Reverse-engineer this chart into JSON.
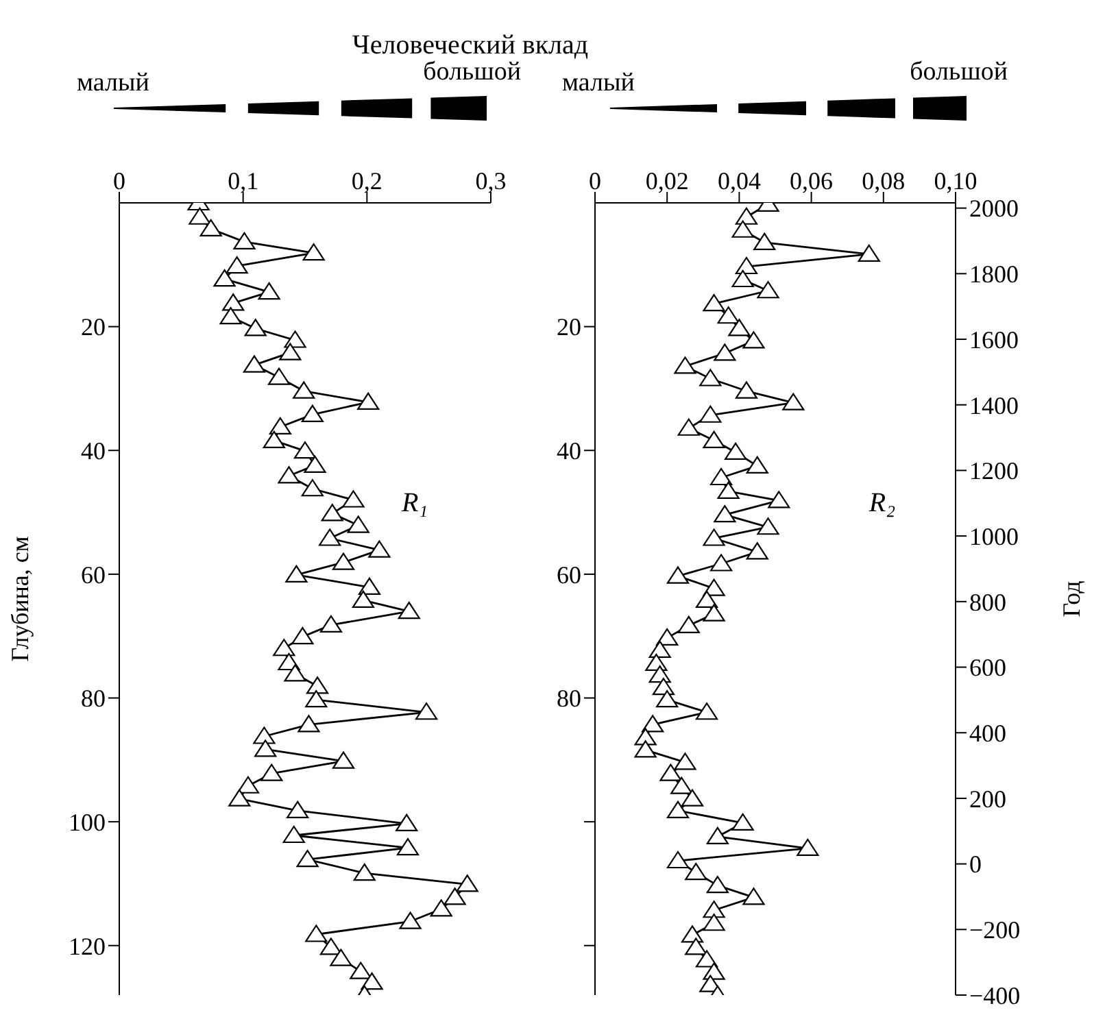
{
  "chart_data": [
    {
      "type": "line",
      "title": "Человеческий вклад",
      "ylabel": "Глубина, см",
      "annotations": [
        "малый",
        "большой"
      ],
      "marker": "triangle",
      "line_style": "solid",
      "xlim": [
        0,
        0.3
      ],
      "xticks": [
        0,
        {
          "value": 0.1,
          "label": "0,1"
        },
        {
          "value": 0.2,
          "label": "0,2"
        },
        {
          "value": 0.3,
          "label": "0,3"
        }
      ],
      "ylim": [
        128,
        0
      ],
      "yticks": [
        20,
        40,
        60,
        80,
        100,
        120
      ],
      "x": [
        0.064,
        0.065,
        0.074,
        0.101,
        0.157,
        0.095,
        0.085,
        0.121,
        0.092,
        0.09,
        0.11,
        0.142,
        0.138,
        0.109,
        0.129,
        0.149,
        0.201,
        0.156,
        0.13,
        0.125,
        0.15,
        0.158,
        0.137,
        0.156,
        0.189,
        0.172,
        0.193,
        0.17,
        0.21,
        0.181,
        0.143,
        0.202,
        0.197,
        0.234,
        0.171,
        0.148,
        0.133,
        0.137,
        0.142,
        0.16,
        0.159,
        0.248,
        0.153,
        0.117,
        0.118,
        0.181,
        0.123,
        0.104,
        0.097,
        0.144,
        0.232,
        0.141,
        0.233,
        0.152,
        0.198,
        0.281,
        0.271,
        0.26,
        0.235,
        0.159,
        0.171,
        0.179,
        0.195,
        0.204,
        0.198
      ],
      "series": [
        {
          "name": "R₁",
          "color": "#000000",
          "values": [
            0,
            2.3,
            4.2,
            6.3,
            8.1,
            10.2,
            12.3,
            14.4,
            16.2,
            18.4,
            20.3,
            22.2,
            24.2,
            26.2,
            28.2,
            30.4,
            32.2,
            34.2,
            36.2,
            38.4,
            40.1,
            42.4,
            44.1,
            46.2,
            48.0,
            50.2,
            52.1,
            54.2,
            56.1,
            58.1,
            60.1,
            62.1,
            64.2,
            66.0,
            68.2,
            70.1,
            72.0,
            74.3,
            76.1,
            78.1,
            80.3,
            82.3,
            84.3,
            86.2,
            88.3,
            90.2,
            92.2,
            94.2,
            96.3,
            98.2,
            100.3,
            102.2,
            104.2,
            106.1,
            108.3,
            110.1,
            112.2,
            114.1,
            116.1,
            118.2,
            120.3,
            122.1,
            124.2,
            125.9,
            128
          ]
        }
      ]
    },
    {
      "type": "line",
      "y2label": "Год",
      "annotations": [
        "малый",
        "большой"
      ],
      "marker": "triangle",
      "line_style": "solid",
      "xlim": [
        0,
        0.1
      ],
      "xticks": [
        0,
        {
          "value": 0.02,
          "label": "0,02"
        },
        {
          "value": 0.04,
          "label": "0,04"
        },
        {
          "value": 0.06,
          "label": "0,06"
        },
        {
          "value": 0.08,
          "label": "0,08"
        },
        {
          "value": 0.1,
          "label": "0,10"
        }
      ],
      "ylim": [
        128,
        0
      ],
      "yticks": [
        20,
        40,
        60,
        80,
        {
          "value": 100,
          "label": null
        },
        {
          "value": 120,
          "label": null
        }
      ],
      "y2lim": [
        -400,
        2016
      ],
      "y2ticks": [
        2000,
        1800,
        1600,
        1400,
        1200,
        1000,
        800,
        600,
        400,
        200,
        0,
        {
          "value": -200,
          "label": "−200"
        },
        {
          "value": -400,
          "label": "−400"
        }
      ],
      "x": [
        0.048,
        0.042,
        0.041,
        0.047,
        0.076,
        0.042,
        0.041,
        0.048,
        0.033,
        0.037,
        0.04,
        0.044,
        0.036,
        0.025,
        0.032,
        0.042,
        0.055,
        0.032,
        0.026,
        0.033,
        0.039,
        0.045,
        0.035,
        0.037,
        0.051,
        0.036,
        0.048,
        0.033,
        0.045,
        0.035,
        0.023,
        0.033,
        0.031,
        0.033,
        0.026,
        0.02,
        0.018,
        0.017,
        0.018,
        0.019,
        0.02,
        0.031,
        0.016,
        0.014,
        0.014,
        0.025,
        0.021,
        0.024,
        0.027,
        0.023,
        0.041,
        0.034,
        0.059,
        0.023,
        0.028,
        0.034,
        0.044,
        0.033,
        0.033,
        0.027,
        0.028,
        0.031,
        0.033,
        0.032,
        0.034
      ],
      "series": [
        {
          "name": "R₂",
          "color": "#000000",
          "values": [
            0.2,
            2.3,
            4.4,
            6.4,
            8.3,
            10.3,
            12.4,
            14.2,
            16.3,
            18.3,
            20.3,
            22.3,
            24.3,
            26.4,
            28.4,
            30.4,
            32.3,
            34.3,
            36.4,
            38.4,
            40.3,
            42.5,
            44.4,
            46.6,
            48.1,
            50.4,
            52.4,
            54.2,
            56.4,
            58.3,
            60.3,
            62.3,
            64.2,
            66.4,
            68.3,
            70.3,
            72.3,
            74.4,
            76.3,
            78.3,
            80.3,
            82.3,
            84.3,
            86.4,
            88.4,
            90.4,
            92.2,
            94.3,
            96.3,
            98.2,
            100.2,
            102.4,
            104.3,
            106.3,
            108.2,
            110.3,
            112.2,
            114.3,
            116.4,
            118.3,
            120.3,
            122.3,
            124.3,
            126.3,
            128
          ]
        }
      ]
    }
  ]
}
